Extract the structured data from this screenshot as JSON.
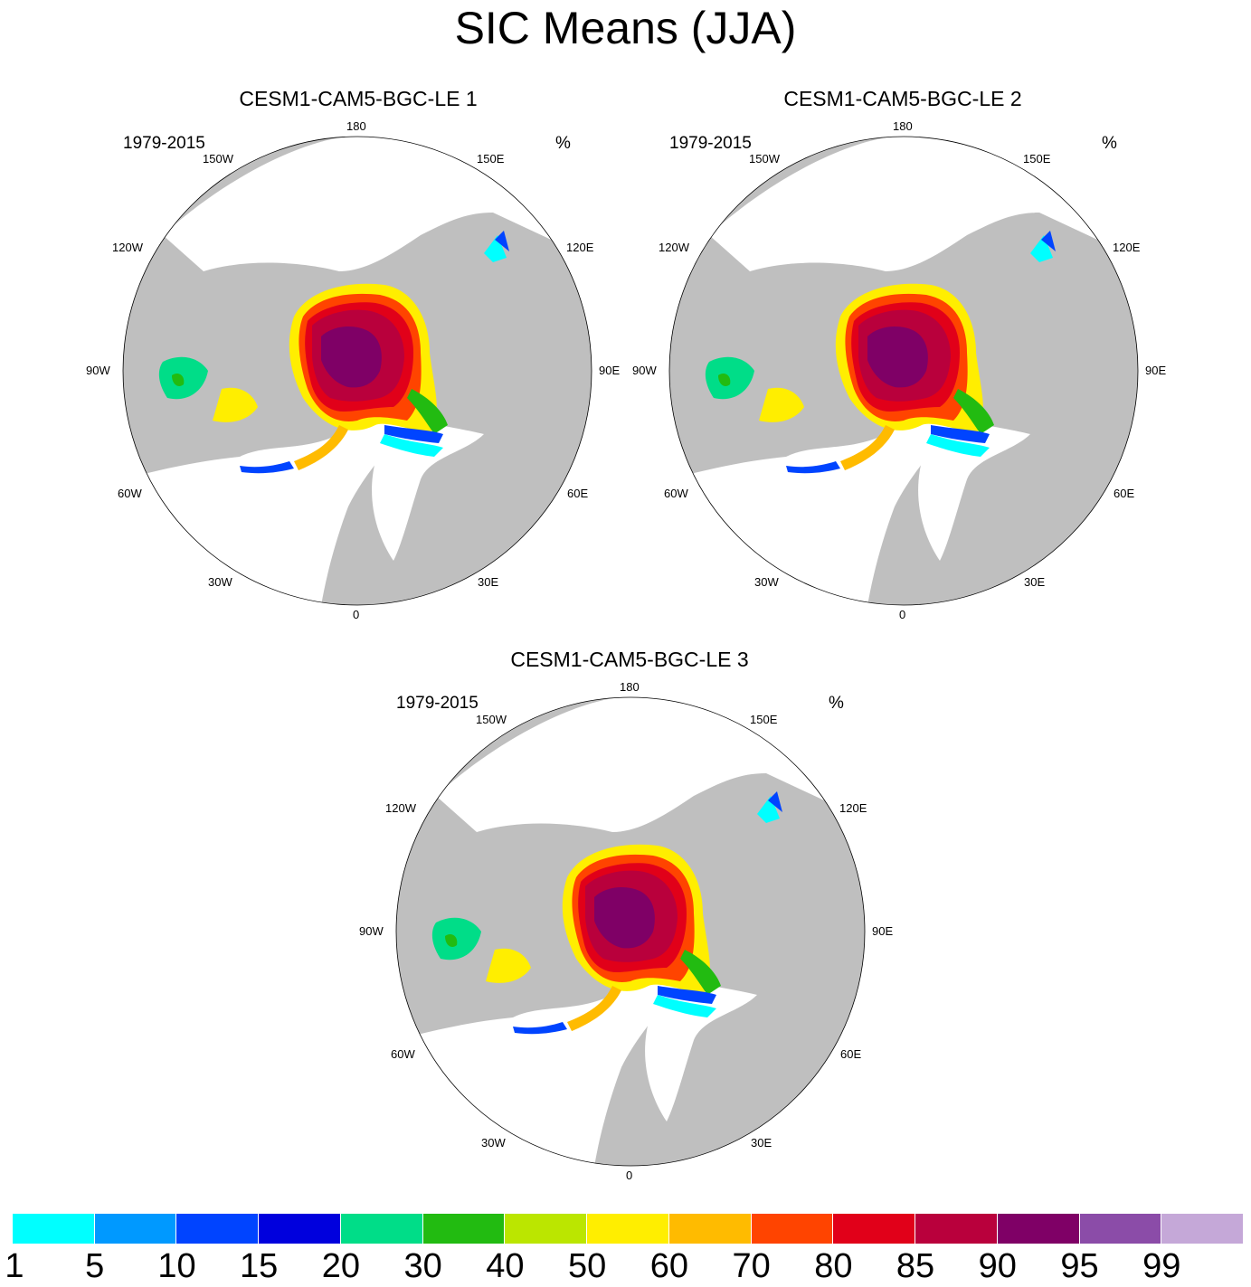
{
  "title": "SIC Means (JJA)",
  "panels": [
    {
      "title": "CESM1-CAM5-BGC-LE 1",
      "period": "1979-2015",
      "units": "%"
    },
    {
      "title": "CESM1-CAM5-BGC-LE 2",
      "period": "1979-2015",
      "units": "%"
    },
    {
      "title": "CESM1-CAM5-BGC-LE 3",
      "period": "1979-2015",
      "units": "%"
    }
  ],
  "lon_labels": [
    "180",
    "150E",
    "120E",
    "90E",
    "60E",
    "30E",
    "0",
    "30W",
    "60W",
    "90W",
    "120W",
    "150W"
  ],
  "colorbar": {
    "labels": [
      "1",
      "5",
      "10",
      "15",
      "20",
      "30",
      "40",
      "50",
      "60",
      "70",
      "80",
      "85",
      "90",
      "95",
      "99"
    ],
    "colors": [
      "#00ffff",
      "#0099ff",
      "#0044ff",
      "#0000dd",
      "#00dd88",
      "#22bb11",
      "#bbe600",
      "#ffee00",
      "#ffbb00",
      "#ff4400",
      "#e10019",
      "#b9003c",
      "#7f0066",
      "#8b4ca8",
      "#c5a8d8"
    ]
  },
  "colors": {
    "land": "#bfbfbf",
    "ocean": "#ffffff"
  }
}
